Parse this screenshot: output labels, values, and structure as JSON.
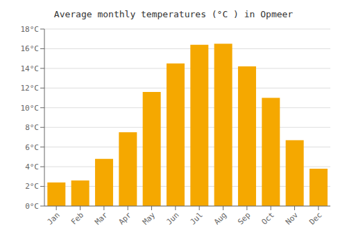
{
  "chart_data": {
    "type": "bar",
    "title": "Average monthly temperatures (°C ) in Opmeer",
    "categories": [
      "Jan",
      "Feb",
      "Mar",
      "Apr",
      "May",
      "Jun",
      "Jul",
      "Aug",
      "Sep",
      "Oct",
      "Nov",
      "Dec"
    ],
    "values": [
      2.4,
      2.6,
      4.8,
      7.5,
      11.6,
      14.5,
      16.4,
      16.5,
      14.2,
      11.0,
      6.7,
      3.8
    ],
    "color": "#F5A800",
    "ylim": [
      0,
      18
    ],
    "yticks": [
      {
        "value": 0,
        "label": "0°C"
      },
      {
        "value": 2,
        "label": "2°C"
      },
      {
        "value": 4,
        "label": "4°C"
      },
      {
        "value": 6,
        "label": "6°C"
      },
      {
        "value": 8,
        "label": "8°C"
      },
      {
        "value": 10,
        "label": "10°C"
      },
      {
        "value": 12,
        "label": "12°C"
      },
      {
        "value": 14,
        "label": "14°C"
      },
      {
        "value": 16,
        "label": "16°C"
      },
      {
        "value": 18,
        "label": "18°C"
      }
    ],
    "grid": true
  }
}
